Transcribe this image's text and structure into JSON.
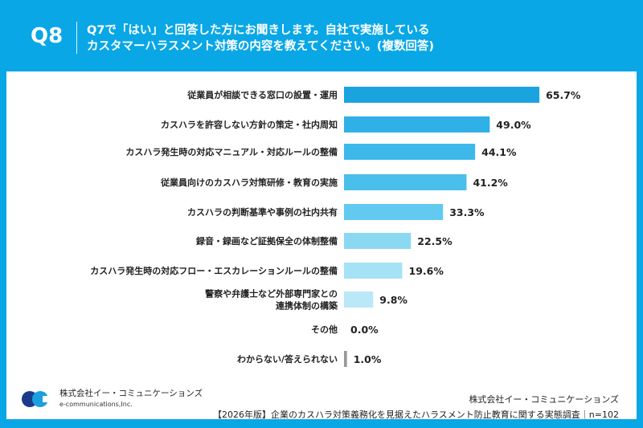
{
  "header": {
    "q": "Q8",
    "title_line1": "Q7で「はい」と回答した方にお聞きします。自社で実施している",
    "title_line2": "カスタマーハラスメント対策の内容を教えてください。(複数回答)"
  },
  "chart_data": {
    "type": "bar",
    "orientation": "horizontal",
    "xlim": [
      0,
      100
    ],
    "grid": false,
    "categories": [
      "従業員が相談できる窓口の設置・運用",
      "カスハラを許容しない方針の策定・社内周知",
      "カスハラ発生時の対応マニュアル・対応ルールの整備",
      "従業員向けのカスハラ対策研修・教育の実施",
      "カスハラの判断基準や事例の社内共有",
      "録音・録画など証拠保全の体制整備",
      "カスハラ発生時の対応フロー・エスカレーションルールの整備",
      "警察や弁護士など外部専門家との\n連携体制の構築",
      "その他",
      "わからない/答えられない"
    ],
    "values": [
      65.7,
      49.0,
      44.1,
      41.2,
      33.3,
      22.5,
      19.6,
      9.8,
      0.0,
      1.0
    ],
    "labels": [
      "65.7%",
      "49.0%",
      "44.1%",
      "41.2%",
      "33.3%",
      "22.5%",
      "19.6%",
      "9.8%",
      "0.0%",
      "1.0%"
    ],
    "colors": [
      "#1ba3e0",
      "#2fb0e6",
      "#3db8ea",
      "#4bbfec",
      "#62caf0",
      "#8bd8f3",
      "#a6e2f6",
      "#b9e9f8",
      "#b9e9f8",
      "#999999"
    ]
  },
  "footer": {
    "logo_name": "株式会社イー・コミュニケーションズ",
    "logo_sub": "e-communications,Inc.",
    "company": "株式会社イー・コミュニケーションズ",
    "survey": "【2026年版】企業のカスハラ対策義務化を見据えたハラスメント防止教育に関する実態調査｜n=102"
  }
}
